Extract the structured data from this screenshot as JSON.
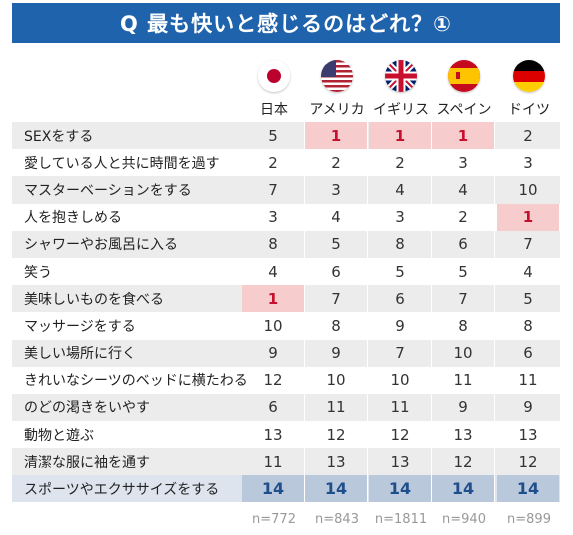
{
  "title": "Q 最も快いと感じるのはどれ？①",
  "countries": [
    {
      "name": "日本",
      "flag_icon": "japan-flag-icon",
      "n": "n=772"
    },
    {
      "name": "アメリカ",
      "flag_icon": "usa-flag-icon",
      "n": "n=843"
    },
    {
      "name": "イギリス",
      "flag_icon": "uk-flag-icon",
      "n": "n=1811"
    },
    {
      "name": "スペイン",
      "flag_icon": "spain-flag-icon",
      "n": "n=940"
    },
    {
      "name": "ドイツ",
      "flag_icon": "germany-flag-icon",
      "n": "n=899"
    }
  ],
  "rows": [
    {
      "label": "SEXをする",
      "values": [
        "5",
        "1",
        "1",
        "1",
        "2"
      ]
    },
    {
      "label": "愛している人と共に時間を過す",
      "values": [
        "2",
        "2",
        "2",
        "3",
        "3"
      ]
    },
    {
      "label": "マスターベーションをする",
      "values": [
        "7",
        "3",
        "4",
        "4",
        "10"
      ]
    },
    {
      "label": "人を抱きしめる",
      "values": [
        "3",
        "4",
        "3",
        "2",
        "1"
      ]
    },
    {
      "label": "シャワーやお風呂に入る",
      "values": [
        "8",
        "5",
        "8",
        "6",
        "7"
      ]
    },
    {
      "label": "笑う",
      "values": [
        "4",
        "6",
        "5",
        "5",
        "4"
      ]
    },
    {
      "label": "美味しいものを食べる",
      "values": [
        "1",
        "7",
        "6",
        "7",
        "5"
      ]
    },
    {
      "label": "マッサージをする",
      "values": [
        "10",
        "8",
        "9",
        "8",
        "8"
      ]
    },
    {
      "label": "美しい場所に行く",
      "values": [
        "9",
        "9",
        "7",
        "10",
        "6"
      ]
    },
    {
      "label": "きれいなシーツのベッドに横たわる",
      "values": [
        "12",
        "10",
        "10",
        "11",
        "11"
      ]
    },
    {
      "label": "のどの渇きをいやす",
      "values": [
        "6",
        "11",
        "11",
        "9",
        "9"
      ]
    },
    {
      "label": "動物と遊ぶ",
      "values": [
        "13",
        "12",
        "12",
        "13",
        "13"
      ]
    },
    {
      "label": "清潔な服に袖を通す",
      "values": [
        "11",
        "13",
        "13",
        "12",
        "12"
      ]
    },
    {
      "label": "スポーツやエクササイズをする",
      "values": [
        "14",
        "14",
        "14",
        "14",
        "14"
      ]
    }
  ],
  "colors": {
    "title_bg": "#1f63ad",
    "highlight_bg": "#f7cccc",
    "highlight_text": "#c8102e",
    "last_row_bg": "#b9c8da"
  }
}
